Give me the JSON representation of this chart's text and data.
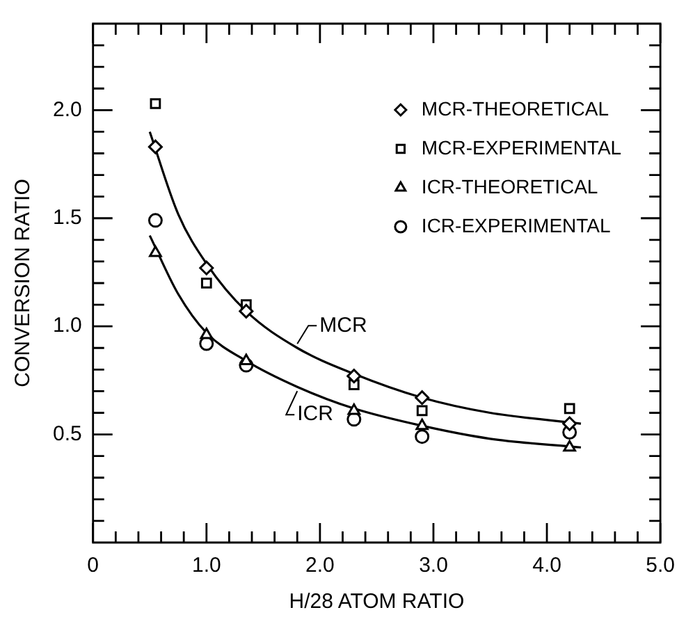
{
  "chart_data": {
    "type": "scatter",
    "xlabel": "H/28 ATOM RATIO",
    "ylabel": "CONVERSION RATIO",
    "xlim": [
      0,
      5.0
    ],
    "xticks": [
      {
        "value": 0,
        "label": "0"
      },
      {
        "value": 0.2,
        "label": null
      },
      {
        "value": 0.4,
        "label": null
      },
      {
        "value": 0.6,
        "label": null
      },
      {
        "value": 0.8,
        "label": null
      },
      {
        "value": 1,
        "label": "1.0"
      },
      {
        "value": 1.2,
        "label": null
      },
      {
        "value": 1.4,
        "label": null
      },
      {
        "value": 1.6,
        "label": null
      },
      {
        "value": 1.8,
        "label": null
      },
      {
        "value": 2,
        "label": "2.0"
      },
      {
        "value": 2.2,
        "label": null
      },
      {
        "value": 2.4,
        "label": null
      },
      {
        "value": 2.6,
        "label": null
      },
      {
        "value": 2.8,
        "label": null
      },
      {
        "value": 3,
        "label": "3.0"
      },
      {
        "value": 3.2,
        "label": null
      },
      {
        "value": 3.4,
        "label": null
      },
      {
        "value": 3.6,
        "label": null
      },
      {
        "value": 3.8,
        "label": null
      },
      {
        "value": 4,
        "label": "4.0"
      },
      {
        "value": 4.2,
        "label": null
      },
      {
        "value": 4.4,
        "label": null
      },
      {
        "value": 4.6,
        "label": null
      },
      {
        "value": 4.8,
        "label": null
      },
      {
        "value": 5,
        "label": "5.0"
      }
    ],
    "ylim": [
      0,
      2.4
    ],
    "yticks": [
      {
        "value": 0.1,
        "label": null
      },
      {
        "value": 0.2,
        "label": null
      },
      {
        "value": 0.3,
        "label": null
      },
      {
        "value": 0.4,
        "label": null
      },
      {
        "value": 0.5,
        "label": "0.5"
      },
      {
        "value": 0.6,
        "label": null
      },
      {
        "value": 0.7,
        "label": null
      },
      {
        "value": 0.8,
        "label": null
      },
      {
        "value": 0.9,
        "label": null
      },
      {
        "value": 1,
        "label": "1.0"
      },
      {
        "value": 1.1,
        "label": null
      },
      {
        "value": 1.2,
        "label": null
      },
      {
        "value": 1.3,
        "label": null
      },
      {
        "value": 1.4,
        "label": null
      },
      {
        "value": 1.5,
        "label": "1.5"
      },
      {
        "value": 1.6,
        "label": null
      },
      {
        "value": 1.7,
        "label": null
      },
      {
        "value": 1.8,
        "label": null
      },
      {
        "value": 1.9,
        "label": null
      },
      {
        "value": 2,
        "label": "2.0"
      },
      {
        "value": 2.1,
        "label": null
      },
      {
        "value": 2.2,
        "label": null
      },
      {
        "value": 2.3,
        "label": null
      }
    ],
    "grid": false,
    "legend": "top right",
    "x": [
      0.55,
      1.0,
      1.35,
      2.3,
      2.9,
      4.2
    ],
    "series": [
      {
        "name": "MCR-THEORETICAL",
        "color": "#000000",
        "marker": "diamond",
        "values": [
          1.83,
          1.27,
          1.07,
          0.77,
          0.67,
          0.55
        ]
      },
      {
        "name": "MCR-EXPERIMENTAL",
        "color": "#000000",
        "marker": "square",
        "values": [
          2.03,
          1.2,
          1.1,
          0.73,
          0.61,
          0.62
        ]
      },
      {
        "name": "ICR-THEORETICAL",
        "color": "#000000",
        "marker": "triangle",
        "values": [
          1.34,
          0.96,
          0.84,
          0.61,
          0.54,
          0.44
        ]
      },
      {
        "name": "ICR-EXPERIMENTAL",
        "color": "#000000",
        "marker": "circle",
        "values": [
          1.49,
          0.92,
          0.82,
          0.57,
          0.49,
          0.51
        ]
      },
      {
        "name": "MCR",
        "type": "line",
        "color": "#000000",
        "marker": "none",
        "line_style": "solid",
        "x": [
          0.5,
          0.75,
          1.0,
          1.35,
          1.8,
          2.3,
          2.9,
          3.5,
          4.3
        ],
        "values": [
          1.9,
          1.52,
          1.29,
          1.07,
          0.9,
          0.78,
          0.67,
          0.6,
          0.55
        ]
      },
      {
        "name": "ICR",
        "type": "line",
        "color": "#000000",
        "marker": "none",
        "line_style": "solid",
        "x": [
          0.5,
          0.75,
          1.0,
          1.35,
          1.8,
          2.3,
          2.9,
          3.5,
          4.3
        ],
        "values": [
          1.42,
          1.15,
          0.97,
          0.84,
          0.72,
          0.62,
          0.54,
          0.48,
          0.44
        ]
      }
    ]
  }
}
